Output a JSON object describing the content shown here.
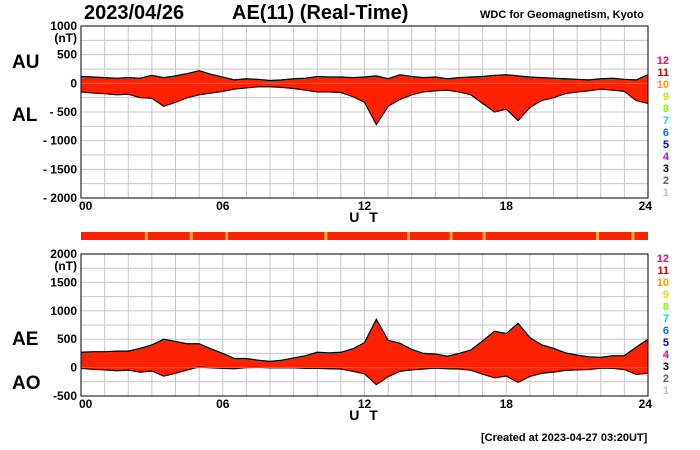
{
  "header": {
    "date": "2023/04/26",
    "title": "AE(11) (Real-Time)",
    "source": "WDC for Geomagnetism, Kyoto"
  },
  "footer": {
    "created": "[Created at 2023-04-27 03:20UT]"
  },
  "legend": {
    "labels": [
      "12",
      "11",
      "10",
      "9",
      "8",
      "7",
      "6",
      "5",
      "4",
      "3",
      "2",
      "1"
    ],
    "colors": [
      "#ff0080",
      "#d00000",
      "#ff9900",
      "#e0e000",
      "#80ff00",
      "#00e0e0",
      "#0070ff",
      "#0000d0",
      "#d000d0",
      "#000000",
      "#606060",
      "#c0c0c0"
    ]
  },
  "colors": {
    "fill": "#ff2200",
    "gap": "#f5b030",
    "grid": "#c8c8c8"
  },
  "chart_data": [
    {
      "type": "area",
      "panel": "AU/AL",
      "title": "AE(11) (Real-Time)",
      "xlabel": "U T",
      "ylabel_unit": "(nT)",
      "upper_label": "AU",
      "lower_label": "AL",
      "xlim": [
        0,
        24
      ],
      "ylim": [
        -2000,
        1000
      ],
      "xticks": [
        "00",
        "06",
        "12",
        "18",
        "24"
      ],
      "yticks": [
        "1000",
        "500",
        "0",
        "- 500",
        "- 1000",
        "- 1500",
        "- 2000"
      ],
      "x": [
        0,
        0.5,
        1,
        1.5,
        2,
        2.5,
        3,
        3.5,
        4,
        4.5,
        5,
        5.5,
        6,
        6.5,
        7,
        7.5,
        8,
        8.5,
        9,
        9.5,
        10,
        10.5,
        11,
        11.5,
        12,
        12.5,
        13,
        13.5,
        14,
        14.5,
        15,
        15.5,
        16,
        16.5,
        17,
        17.5,
        18,
        18.5,
        19,
        19.5,
        20,
        20.5,
        21,
        21.5,
        22,
        22.5,
        23,
        23.5,
        24
      ],
      "series": [
        {
          "name": "AU",
          "values": [
            120,
            110,
            100,
            90,
            100,
            90,
            140,
            100,
            130,
            170,
            220,
            160,
            110,
            60,
            80,
            70,
            50,
            60,
            80,
            90,
            120,
            110,
            110,
            100,
            110,
            130,
            80,
            150,
            120,
            100,
            110,
            80,
            100,
            110,
            120,
            140,
            150,
            130,
            110,
            100,
            90,
            80,
            70,
            60,
            80,
            90,
            70,
            60,
            150
          ]
        },
        {
          "name": "AL",
          "values": [
            -150,
            -170,
            -180,
            -200,
            -190,
            -250,
            -260,
            -400,
            -330,
            -250,
            -200,
            -170,
            -140,
            -100,
            -80,
            -60,
            -60,
            -70,
            -90,
            -120,
            -150,
            -150,
            -160,
            -230,
            -330,
            -720,
            -400,
            -280,
            -200,
            -150,
            -130,
            -120,
            -150,
            -200,
            -350,
            -500,
            -450,
            -650,
            -420,
            -300,
            -250,
            -180,
            -150,
            -130,
            -100,
            -120,
            -140,
            -300,
            -350
          ]
        }
      ]
    },
    {
      "type": "area",
      "panel": "AE/AO",
      "xlabel": "U T",
      "ylabel_unit": "(nT)",
      "upper_label": "AE",
      "lower_label": "AO",
      "xlim": [
        0,
        24
      ],
      "ylim": [
        -500,
        2000
      ],
      "xticks": [
        "00",
        "06",
        "12",
        "18",
        "24"
      ],
      "yticks": [
        "2000",
        "1500",
        "1000",
        "500",
        "0",
        "-500"
      ],
      "x": [
        0,
        0.5,
        1,
        1.5,
        2,
        2.5,
        3,
        3.5,
        4,
        4.5,
        5,
        5.5,
        6,
        6.5,
        7,
        7.5,
        8,
        8.5,
        9,
        9.5,
        10,
        10.5,
        11,
        11.5,
        12,
        12.5,
        13,
        13.5,
        14,
        14.5,
        15,
        15.5,
        16,
        16.5,
        17,
        17.5,
        18,
        18.5,
        19,
        19.5,
        20,
        20.5,
        21,
        21.5,
        22,
        22.5,
        23,
        23.5,
        24
      ],
      "series": [
        {
          "name": "AE",
          "values": [
            270,
            280,
            280,
            290,
            290,
            340,
            400,
            500,
            460,
            420,
            420,
            330,
            250,
            160,
            160,
            130,
            110,
            130,
            170,
            210,
            270,
            260,
            270,
            330,
            440,
            850,
            480,
            430,
            320,
            250,
            240,
            200,
            250,
            310,
            470,
            640,
            600,
            780,
            530,
            400,
            340,
            260,
            220,
            190,
            180,
            210,
            210,
            360,
            500
          ]
        },
        {
          "name": "AO",
          "values": [
            -15,
            -30,
            -40,
            -55,
            -45,
            -80,
            -60,
            -150,
            -100,
            -40,
            10,
            -5,
            -15,
            -20,
            0,
            5,
            -5,
            -5,
            -5,
            -15,
            -15,
            -20,
            -25,
            -65,
            -110,
            -300,
            -160,
            -65,
            -40,
            -25,
            -10,
            -20,
            -25,
            -45,
            -115,
            -180,
            -150,
            -260,
            -155,
            -100,
            -80,
            -50,
            -40,
            -35,
            -10,
            -15,
            -35,
            -120,
            -100
          ]
        }
      ]
    }
  ]
}
